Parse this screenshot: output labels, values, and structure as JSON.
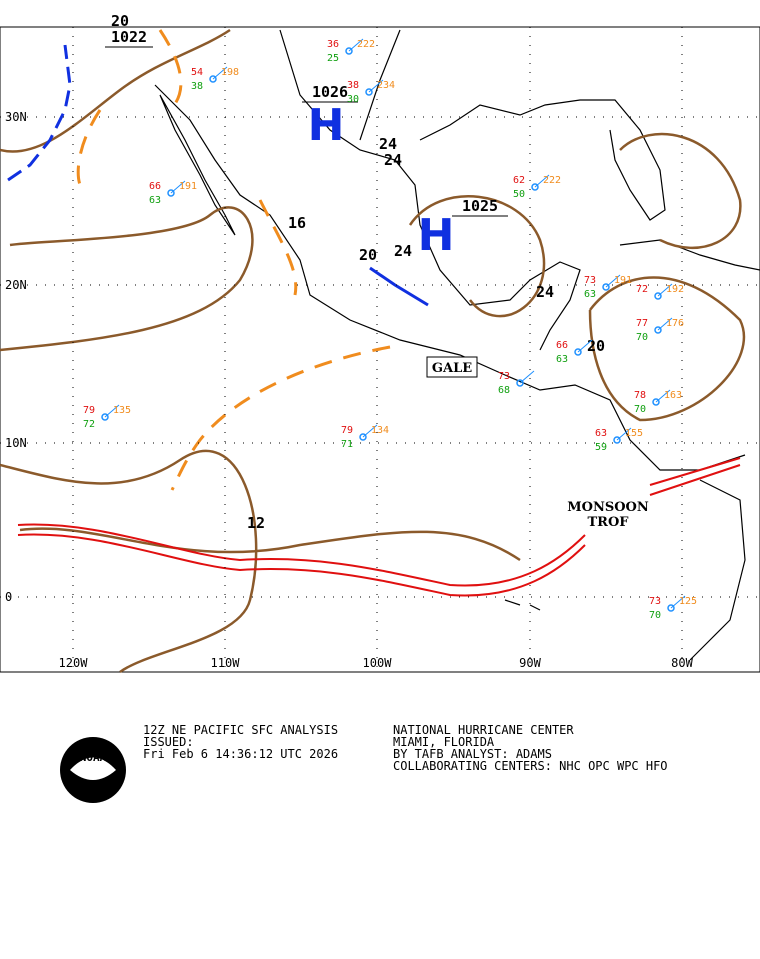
{
  "map": {
    "lat_labels": [
      "30N",
      "20N",
      "10N",
      "0"
    ],
    "lon_labels": [
      "120W",
      "110W",
      "100W",
      "90W",
      "80W"
    ],
    "pressure_centers": [
      {
        "letter": "H",
        "value": "1026"
      },
      {
        "letter": "H",
        "value": "1025"
      }
    ],
    "isobar_labels": [
      "20",
      "1022",
      "24",
      "24",
      "16",
      "20",
      "24",
      "24",
      "20",
      "12"
    ],
    "annotations": [
      "GALE",
      "MONSOON",
      "TROF"
    ],
    "stations": [
      {
        "temp": 79,
        "dew": 72,
        "press": 135
      },
      {
        "temp": 79,
        "dew": 71,
        "press": 134
      },
      {
        "temp": 66,
        "dew": 63,
        "press": 191
      },
      {
        "temp": 73,
        "dew": 68
      },
      {
        "temp": 78,
        "dew": 70,
        "press": 163
      },
      {
        "temp": 77,
        "dew": 70,
        "press": 176
      },
      {
        "temp": 72,
        "press": 192
      },
      {
        "temp": 63,
        "dew": 59,
        "press": 155
      },
      {
        "temp": 66,
        "dew": 63
      },
      {
        "temp": 73,
        "dew": 70,
        "press": 125
      },
      {
        "temp": 62,
        "dew": 50,
        "press": 222
      },
      {
        "temp": 54,
        "dew": 38,
        "press": 198
      },
      {
        "temp": 38,
        "dew": 30,
        "press": 234
      },
      {
        "temp": 36,
        "dew": 25,
        "press": 222
      },
      {
        "temp": 73,
        "dew": 63,
        "press": 191
      }
    ]
  },
  "footer": {
    "left": [
      "12Z NE PACIFIC SFC ANALYSIS",
      "ISSUED:",
      "Fri Feb 6 14:36:12 UTC 2026"
    ],
    "right": [
      "NATIONAL HURRICANE CENTER",
      "MIAMI, FLORIDA",
      "BY TAFB ANALYST: ADAMS",
      "COLLABORATING CENTERS: NHC OPC WPC HFO"
    ],
    "logo": "NOAA"
  }
}
